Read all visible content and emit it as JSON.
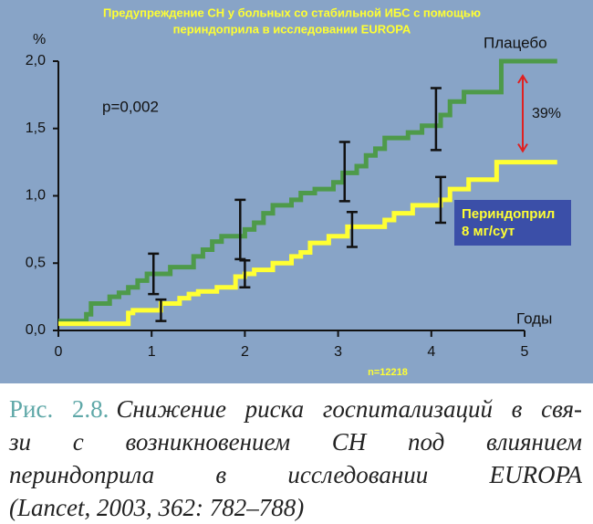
{
  "chart_data": {
    "type": "step",
    "title": [
      "Предупреждение СН у больных со стабильной ИБС с помощью",
      "периндоприла в исследовании EUROPA"
    ],
    "y_label": "%",
    "x_label": "Годы",
    "xlim": [
      0,
      5.5
    ],
    "ylim": [
      0,
      2.0
    ],
    "xticks": [
      0,
      1,
      2,
      3,
      4,
      5
    ],
    "yticks": [
      {
        "value": 0,
        "label": "0,0"
      },
      {
        "value": 0.5,
        "label": "0,5"
      },
      {
        "value": 1.0,
        "label": "1,0"
      },
      {
        "value": 1.5,
        "label": "1,5"
      },
      {
        "value": 2.0,
        "label": "2,0"
      }
    ],
    "series": [
      {
        "name": "Плацебо",
        "color": "#4e9a4a",
        "x": [
          0,
          0.3,
          0.35,
          0.55,
          0.65,
          0.75,
          0.85,
          0.95,
          1.2,
          1.45,
          1.55,
          1.65,
          1.75,
          2.0,
          2.1,
          2.2,
          2.3,
          2.5,
          2.6,
          2.75,
          2.95,
          3.05,
          3.2,
          3.3,
          3.4,
          3.5,
          3.75,
          3.9,
          4.1,
          4.2,
          4.35,
          4.75,
          5.35
        ],
        "values": [
          0.07,
          0.12,
          0.2,
          0.25,
          0.28,
          0.32,
          0.37,
          0.42,
          0.47,
          0.55,
          0.6,
          0.66,
          0.7,
          0.75,
          0.8,
          0.87,
          0.93,
          0.97,
          1.02,
          1.05,
          1.1,
          1.17,
          1.22,
          1.3,
          1.35,
          1.43,
          1.47,
          1.52,
          1.6,
          1.7,
          1.77,
          2.0,
          2.0
        ],
        "error_bars": [
          {
            "x": 1.02,
            "value": 0.42,
            "error": 0.15
          },
          {
            "x": 1.95,
            "value": 0.75,
            "error": 0.22
          },
          {
            "x": 3.07,
            "value": 1.18,
            "error": 0.22
          },
          {
            "x": 4.05,
            "value": 1.57,
            "error": 0.23
          }
        ]
      },
      {
        "name": "Периндоприл 8 мг/сут",
        "color": "#ffff33",
        "x": [
          0,
          0.75,
          0.8,
          1.1,
          1.3,
          1.4,
          1.5,
          1.7,
          1.9,
          2.0,
          2.1,
          2.3,
          2.5,
          2.6,
          2.7,
          2.9,
          3.1,
          3.5,
          3.6,
          3.8,
          4.1,
          4.2,
          4.4,
          4.7,
          5.35
        ],
        "values": [
          0.05,
          0.13,
          0.15,
          0.2,
          0.24,
          0.27,
          0.29,
          0.32,
          0.4,
          0.42,
          0.45,
          0.5,
          0.55,
          0.58,
          0.65,
          0.7,
          0.77,
          0.82,
          0.87,
          0.93,
          0.97,
          1.05,
          1.12,
          1.25,
          1.25
        ],
        "error_bars": [
          {
            "x": 1.1,
            "value": 0.15,
            "error": 0.08
          },
          {
            "x": 2.0,
            "value": 0.42,
            "error": 0.1
          },
          {
            "x": 3.15,
            "value": 0.75,
            "error": 0.13
          },
          {
            "x": 4.1,
            "value": 0.97,
            "error": 0.17
          }
        ]
      }
    ],
    "annotations": {
      "p_value": "p=0,002",
      "difference": "39%",
      "n": "n=12218"
    }
  },
  "caption": {
    "label": "Рис. 2.8.",
    "lines": [
      "Снижение риска госпитализаций в свя-",
      "зи с возникновением СН под влиянием",
      "периндоприла в исследовании EUROPA",
      "(Lancet, 2003, 362: 782–788)"
    ]
  }
}
